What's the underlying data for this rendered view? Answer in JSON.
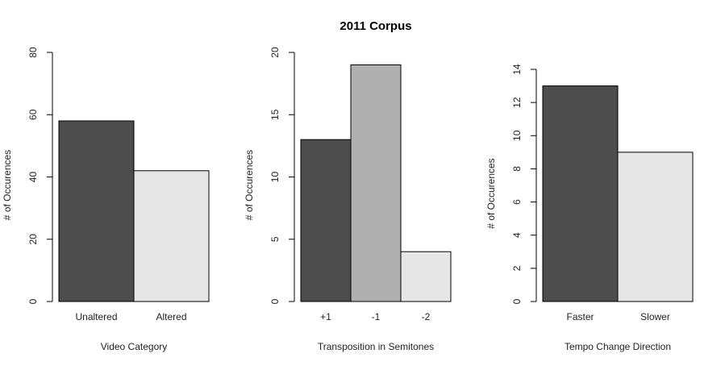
{
  "figure": {
    "title": "2011 Corpus"
  },
  "chart_data": [
    {
      "type": "bar",
      "categories": [
        "Unaltered",
        "Altered"
      ],
      "values": [
        58,
        42
      ],
      "colors": [
        "#4d4d4d",
        "#e6e6e6"
      ],
      "xlabel": "Video Category",
      "ylabel": "# of Occurences",
      "ylim": [
        0,
        80
      ],
      "yticks": [
        0,
        20,
        40,
        60,
        80
      ]
    },
    {
      "type": "bar",
      "categories": [
        "+1",
        "-1",
        "-2"
      ],
      "values": [
        13,
        19,
        4
      ],
      "colors": [
        "#4d4d4d",
        "#b0b0b0",
        "#e6e6e6"
      ],
      "xlabel": "Transposition in Semitones",
      "ylabel": "# of Occurences",
      "ylim": [
        0,
        20
      ],
      "yticks": [
        0,
        5,
        10,
        15,
        20
      ]
    },
    {
      "type": "bar",
      "categories": [
        "Faster",
        "Slower"
      ],
      "values": [
        13,
        9
      ],
      "colors": [
        "#4d4d4d",
        "#e6e6e6"
      ],
      "xlabel": "Tempo Change Direction",
      "ylabel": "# of Occurences",
      "ylim": [
        0,
        14
      ],
      "yticks": [
        0,
        2,
        4,
        6,
        8,
        10,
        12,
        14
      ]
    }
  ]
}
